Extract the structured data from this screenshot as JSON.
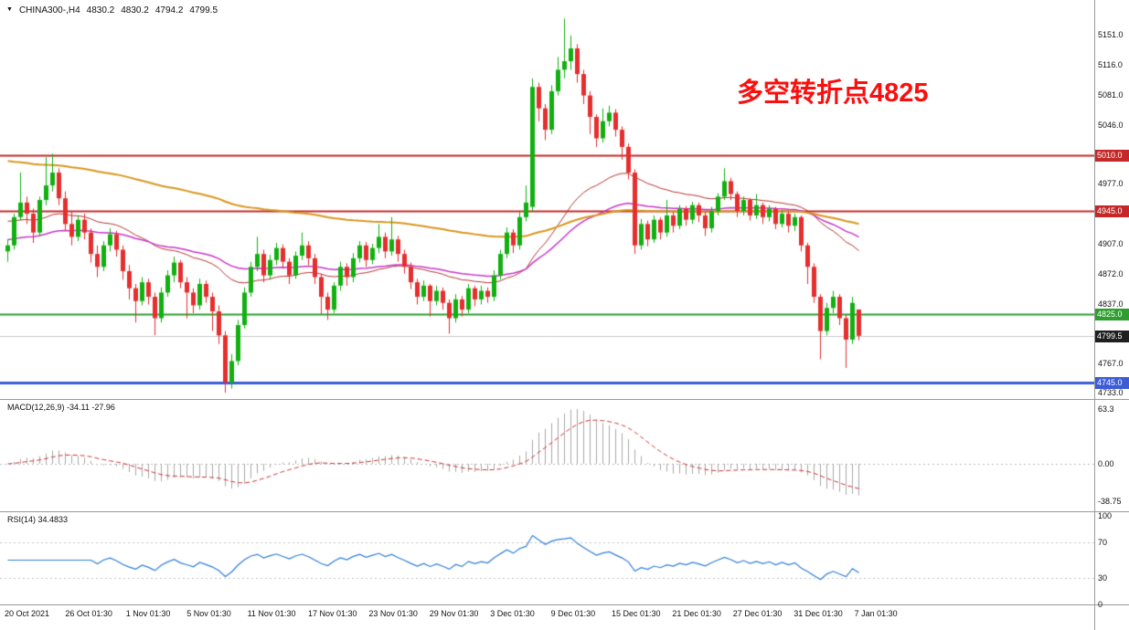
{
  "window": {
    "symbol": "CHINA300-,H4",
    "open": "4830.2",
    "high": "4830.2",
    "low": "4794.2",
    "close": "4799.5"
  },
  "icons": {
    "triangle_down": "▼"
  },
  "annotation": {
    "text": "多空转折点4825",
    "color": "#fa0f0f"
  },
  "indicators": {
    "macd_label": "MACD(12,26,9) -34.11 -27.96",
    "rsi_label": "RSI(14) 34.4833"
  },
  "axis": {
    "price_ticks": [
      {
        "label": "5151.0",
        "price": 5151.0
      },
      {
        "label": "5116.0",
        "price": 5116.0
      },
      {
        "label": "5081.0",
        "price": 5081.0
      },
      {
        "label": "5046.0",
        "price": 5046.0
      },
      {
        "label": "4977.0",
        "price": 4977.0
      },
      {
        "label": "4907.0",
        "price": 4907.0
      },
      {
        "label": "4872.0",
        "price": 4872.0
      },
      {
        "label": "4837.0",
        "price": 4837.0
      },
      {
        "label": "4767.0",
        "price": 4767.0
      },
      {
        "label": "4733.0",
        "price": 4733.0
      }
    ],
    "price_levels": [
      {
        "label": "5010.0",
        "price": 5010.0,
        "color": "#c62828"
      },
      {
        "label": "4945.0",
        "price": 4945.0,
        "color": "#c62828"
      },
      {
        "label": "4825.0",
        "price": 4825.0,
        "color": "#2e9e2e"
      },
      {
        "label": "4799.5",
        "price": 4799.5,
        "color": "#1f1f1f"
      },
      {
        "label": "4745.0",
        "price": 4745.0,
        "color": "#3c5bd7"
      }
    ],
    "macd_ticks": [
      {
        "label": "63.3",
        "value": 63.3
      },
      {
        "label": "0.00",
        "value": 0
      },
      {
        "label": "-38.75",
        "value": -38.75
      }
    ],
    "rsi_ticks": [
      {
        "label": "100",
        "value": 100
      },
      {
        "label": "70",
        "value": 70
      },
      {
        "label": "30",
        "value": 30
      },
      {
        "label": "0",
        "value": 0
      }
    ]
  },
  "chart_data": {
    "type": "candlestick",
    "symbol": "CHINA300",
    "timeframe": "H4",
    "title": "CHINA300-,H4 4830.2 4830.2 4794.2 4799.5",
    "price_range": {
      "top": 5191.5,
      "bottom": 4725.7
    },
    "colors": {
      "up": "#11b011",
      "down": "#e62e2e"
    },
    "x_labels": [
      "20 Oct 2021",
      "26 Oct 01:30",
      "1 Nov 01:30",
      "5 Nov 01:30",
      "11 Nov 01:30",
      "17 Nov 01:30",
      "23 Nov 01:30",
      "29 Nov 01:30",
      "3 Dec 01:30",
      "9 Dec 01:30",
      "15 Dec 01:30",
      "21 Dec 01:30",
      "27 Dec 01:30",
      "31 Dec 01:30",
      "7 Jan 01:30"
    ],
    "levels": [
      {
        "price": 5010.0,
        "color": "#c62828",
        "width": 2
      },
      {
        "price": 4945.0,
        "color": "#c62828",
        "width": 2
      },
      {
        "price": 4825.0,
        "color": "#2e9e2e",
        "width": 2
      },
      {
        "price": 4745.0,
        "color": "#3c5bd7",
        "width": 3
      },
      {
        "price": 4799.5,
        "color": "#c8c8c8",
        "width": 1
      }
    ],
    "moving_averages": [
      {
        "name": "fast",
        "method": "ema",
        "period": 34,
        "seed": 4935,
        "color": "#b4322e",
        "width": 1
      },
      {
        "name": "mid",
        "method": "ema",
        "period": 60,
        "seed": 4912,
        "color": "#c837c8",
        "width": 1.5
      },
      {
        "name": "slow",
        "method": "ema",
        "period": 140,
        "seed": 5005,
        "color": "#d8971e",
        "width": 2
      }
    ],
    "macd": {
      "fast": 12,
      "slow": 26,
      "signal": 9,
      "last": -34.11,
      "last_signal": -27.96,
      "histogram_color": "#a8a8a8",
      "signal_color": "#d03030",
      "axis": [
        63.3,
        0,
        -38.75
      ]
    },
    "rsi": {
      "period": 14,
      "last": 34.4833,
      "color": "#2f7ed8",
      "levels": [
        30,
        70
      ],
      "axis": [
        100,
        70,
        30,
        0
      ]
    },
    "candles": [
      [
        4898,
        4912,
        4886,
        4905
      ],
      [
        4905,
        4942,
        4900,
        4938
      ],
      [
        4938,
        4990,
        4934,
        4955
      ],
      [
        4955,
        4962,
        4930,
        4942
      ],
      [
        4942,
        4948,
        4908,
        4920
      ],
      [
        4920,
        4962,
        4916,
        4958
      ],
      [
        4958,
        5008,
        4952,
        4975
      ],
      [
        4975,
        5012,
        4968,
        4990
      ],
      [
        4990,
        4995,
        4952,
        4960
      ],
      [
        4960,
        4968,
        4922,
        4930
      ],
      [
        4930,
        4945,
        4905,
        4915
      ],
      [
        4915,
        4940,
        4910,
        4935
      ],
      [
        4935,
        4942,
        4912,
        4920
      ],
      [
        4920,
        4925,
        4885,
        4895
      ],
      [
        4895,
        4905,
        4868,
        4880
      ],
      [
        4880,
        4910,
        4875,
        4905
      ],
      [
        4905,
        4925,
        4898,
        4918
      ],
      [
        4918,
        4922,
        4892,
        4900
      ],
      [
        4900,
        4905,
        4865,
        4875
      ],
      [
        4875,
        4882,
        4842,
        4855
      ],
      [
        4855,
        4860,
        4815,
        4840
      ],
      [
        4840,
        4868,
        4835,
        4862
      ],
      [
        4862,
        4866,
        4836,
        4845
      ],
      [
        4845,
        4850,
        4800,
        4820
      ],
      [
        4820,
        4856,
        4815,
        4850
      ],
      [
        4850,
        4876,
        4845,
        4870
      ],
      [
        4870,
        4892,
        4862,
        4885
      ],
      [
        4885,
        4888,
        4855,
        4862
      ],
      [
        4862,
        4868,
        4820,
        4850
      ],
      [
        4850,
        4855,
        4826,
        4835
      ],
      [
        4835,
        4866,
        4830,
        4860
      ],
      [
        4860,
        4864,
        4838,
        4845
      ],
      [
        4845,
        4850,
        4805,
        4828
      ],
      [
        4828,
        4835,
        4790,
        4800
      ],
      [
        4800,
        4805,
        4733,
        4745
      ],
      [
        4745,
        4778,
        4738,
        4770
      ],
      [
        4770,
        4818,
        4765,
        4812
      ],
      [
        4812,
        4856,
        4808,
        4850
      ],
      [
        4850,
        4886,
        4845,
        4880
      ],
      [
        4880,
        4915,
        4875,
        4895
      ],
      [
        4895,
        4900,
        4862,
        4870
      ],
      [
        4870,
        4894,
        4865,
        4888
      ],
      [
        4888,
        4908,
        4882,
        4902
      ],
      [
        4902,
        4906,
        4878,
        4886
      ],
      [
        4886,
        4890,
        4860,
        4870
      ],
      [
        4870,
        4898,
        4866,
        4893
      ],
      [
        4893,
        4920,
        4888,
        4905
      ],
      [
        4905,
        4910,
        4882,
        4890
      ],
      [
        4890,
        4895,
        4860,
        4868
      ],
      [
        4868,
        4872,
        4825,
        4845
      ],
      [
        4845,
        4850,
        4818,
        4830
      ],
      [
        4830,
        4862,
        4826,
        4858
      ],
      [
        4858,
        4886,
        4852,
        4880
      ],
      [
        4880,
        4884,
        4858,
        4868
      ],
      [
        4868,
        4896,
        4862,
        4890
      ],
      [
        4890,
        4910,
        4885,
        4905
      ],
      [
        4905,
        4909,
        4880,
        4888
      ],
      [
        4888,
        4907,
        4883,
        4902
      ],
      [
        4902,
        4930,
        4896,
        4915
      ],
      [
        4915,
        4920,
        4890,
        4898
      ],
      [
        4898,
        4938,
        4893,
        4912
      ],
      [
        4912,
        4916,
        4886,
        4895
      ],
      [
        4895,
        4900,
        4872,
        4880
      ],
      [
        4880,
        4885,
        4854,
        4862
      ],
      [
        4862,
        4866,
        4836,
        4845
      ],
      [
        4845,
        4864,
        4840,
        4858
      ],
      [
        4858,
        4860,
        4822,
        4840
      ],
      [
        4840,
        4858,
        4835,
        4852
      ],
      [
        4852,
        4856,
        4830,
        4838
      ],
      [
        4838,
        4842,
        4802,
        4820
      ],
      [
        4820,
        4848,
        4815,
        4842
      ],
      [
        4842,
        4846,
        4822,
        4830
      ],
      [
        4830,
        4860,
        4826,
        4855
      ],
      [
        4855,
        4858,
        4834,
        4842
      ],
      [
        4842,
        4858,
        4836,
        4852
      ],
      [
        4852,
        4856,
        4838,
        4845
      ],
      [
        4845,
        4876,
        4840,
        4870
      ],
      [
        4870,
        4900,
        4865,
        4895
      ],
      [
        4895,
        4926,
        4890,
        4920
      ],
      [
        4920,
        4924,
        4896,
        4905
      ],
      [
        4905,
        4944,
        4900,
        4938
      ],
      [
        4938,
        4975,
        4933,
        4955
      ],
      [
        4950,
        5100,
        4945,
        5090
      ],
      [
        5090,
        5095,
        5050,
        5065
      ],
      [
        5065,
        5070,
        5028,
        5040
      ],
      [
        5040,
        5092,
        5035,
        5085
      ],
      [
        5085,
        5125,
        5080,
        5110
      ],
      [
        5110,
        5170,
        5100,
        5120
      ],
      [
        5120,
        5150,
        5110,
        5135
      ],
      [
        5135,
        5140,
        5095,
        5105
      ],
      [
        5105,
        5110,
        5070,
        5080
      ],
      [
        5080,
        5085,
        5035,
        5055
      ],
      [
        5055,
        5058,
        5020,
        5030
      ],
      [
        5030,
        5065,
        5025,
        5050
      ],
      [
        5050,
        5068,
        5044,
        5060
      ],
      [
        5060,
        5064,
        5032,
        5040
      ],
      [
        5040,
        5044,
        5005,
        5020
      ],
      [
        5020,
        5024,
        4982,
        4990
      ],
      [
        4990,
        4994,
        4895,
        4905
      ],
      [
        4905,
        4936,
        4900,
        4930
      ],
      [
        4930,
        4934,
        4904,
        4912
      ],
      [
        4912,
        4940,
        4908,
        4935
      ],
      [
        4935,
        4938,
        4912,
        4920
      ],
      [
        4920,
        4958,
        4915,
        4940
      ],
      [
        4940,
        4944,
        4920,
        4928
      ],
      [
        4928,
        4952,
        4924,
        4948
      ],
      [
        4948,
        4951,
        4928,
        4935
      ],
      [
        4935,
        4956,
        4930,
        4952
      ],
      [
        4952,
        4955,
        4932,
        4940
      ],
      [
        4940,
        4944,
        4916,
        4925
      ],
      [
        4925,
        4950,
        4920,
        4945
      ],
      [
        4945,
        4966,
        4940,
        4962
      ],
      [
        4962,
        4995,
        4958,
        4980
      ],
      [
        4980,
        4984,
        4958,
        4965
      ],
      [
        4965,
        4968,
        4938,
        4945
      ],
      [
        4945,
        4962,
        4940,
        4958
      ],
      [
        4958,
        4960,
        4934,
        4940
      ],
      [
        4940,
        4965,
        4936,
        4952
      ],
      [
        4952,
        4955,
        4930,
        4938
      ],
      [
        4938,
        4952,
        4933,
        4948
      ],
      [
        4948,
        4950,
        4924,
        4930
      ],
      [
        4930,
        4946,
        4926,
        4942
      ],
      [
        4942,
        4945,
        4920,
        4928
      ],
      [
        4928,
        4942,
        4922,
        4938
      ],
      [
        4938,
        4940,
        4898,
        4905
      ],
      [
        4905,
        4908,
        4860,
        4880
      ],
      [
        4880,
        4884,
        4838,
        4845
      ],
      [
        4845,
        4848,
        4772,
        4805
      ],
      [
        4805,
        4838,
        4800,
        4832
      ],
      [
        4832,
        4852,
        4826,
        4845
      ],
      [
        4845,
        4848,
        4812,
        4820
      ],
      [
        4820,
        4824,
        4762,
        4795
      ],
      [
        4795,
        4845,
        4790,
        4838
      ],
      [
        4830.2,
        4830.2,
        4794.2,
        4799.5
      ]
    ]
  }
}
